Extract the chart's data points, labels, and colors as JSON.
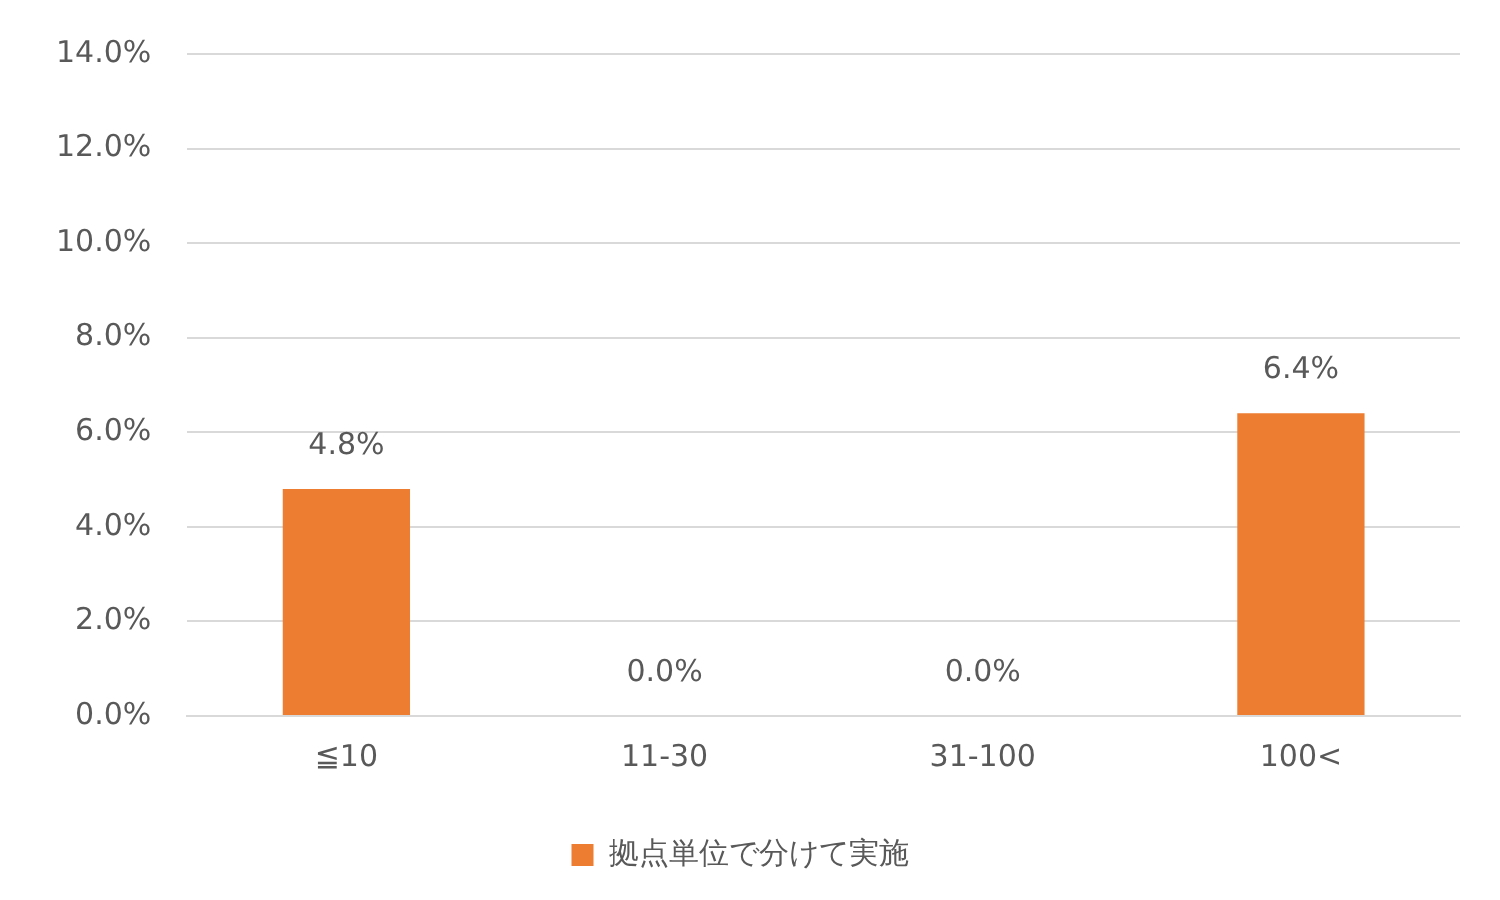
{
  "chart_data": {
    "type": "bar",
    "categories": [
      "≦10",
      "11-30",
      "31-100",
      "100<"
    ],
    "series": [
      {
        "name": "拠点単位で分けて実施",
        "color": "#ed7d31",
        "values": [
          4.8,
          0.0,
          0.0,
          6.4
        ],
        "value_labels": [
          "4.8%",
          "0.0%",
          "0.0%",
          "6.4%"
        ]
      }
    ],
    "ylim": [
      0,
      14
    ],
    "yticks": [
      {
        "value": 0,
        "label": "0.0%"
      },
      {
        "value": 2,
        "label": "2.0%"
      },
      {
        "value": 4,
        "label": "4.0%"
      },
      {
        "value": 6,
        "label": "6.0%"
      },
      {
        "value": 8,
        "label": "8.0%"
      },
      {
        "value": 10,
        "label": "10.0%"
      },
      {
        "value": 12,
        "label": "12.0%"
      },
      {
        "value": 14,
        "label": "14.0%"
      }
    ],
    "grid": "y",
    "legend": "bottom"
  }
}
